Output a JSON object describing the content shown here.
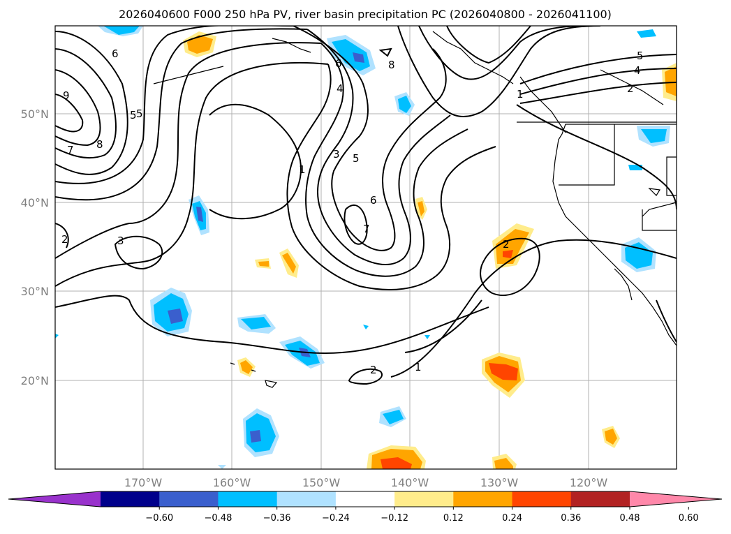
{
  "title": "2026040600 F000 250 hPa PV, river basin precipitation PC (2026040800 - 2026041100)",
  "map": {
    "lon_labels": [
      "170°W",
      "160°W",
      "150°W",
      "140°W",
      "130°W",
      "120°W"
    ],
    "lat_labels": [
      "50°N",
      "40°N",
      "30°N",
      "20°N"
    ],
    "contour_labels": [
      "6",
      "5",
      "4",
      "5",
      "4",
      "2",
      "6",
      "8",
      "5",
      "7",
      "8",
      "9",
      "1",
      "3",
      "5",
      "6",
      "7",
      "3",
      "2",
      "2",
      "2",
      "1",
      "1"
    ]
  },
  "colorbar": {
    "colors": [
      "#9932cc",
      "#00008b",
      "#3a5fcd",
      "#00bfff",
      "#b0e2ff",
      "#ffffff",
      "#ffec8b",
      "#ffa500",
      "#ff4500",
      "#b22222",
      "#ff88aa"
    ],
    "ticks": [
      "−0.60",
      "−0.48",
      "−0.36",
      "−0.24",
      "−0.12",
      "0.12",
      "0.24",
      "0.36",
      "0.48",
      "0.60"
    ]
  }
}
